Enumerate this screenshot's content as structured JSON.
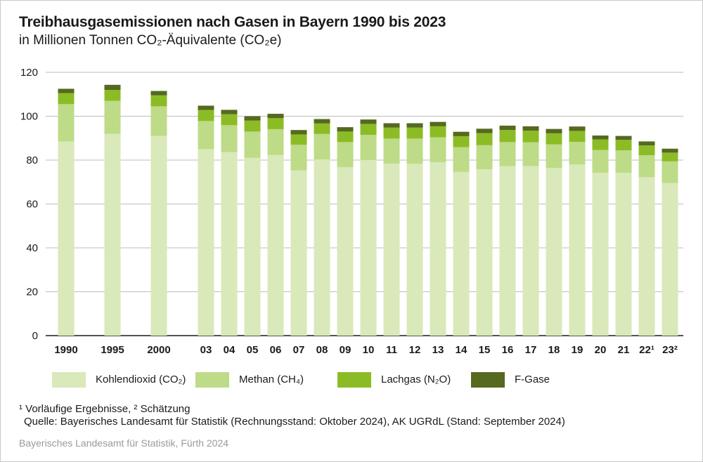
{
  "title": "Treibhausgasemissionen nach Gasen in Bayern 1990 bis 2023",
  "subtitle": "in Millionen Tonnen CO₂-Äquivalente (CO₂e)",
  "footnote": "¹ Vorläufige Ergebnisse, ² Schätzung",
  "source": "Quelle: Bayerisches Landesamt für Statistik (Rechnungsstand: Oktober 2024), AK UGRdL (Stand: September 2024)",
  "credit": "Bayerisches Landesamt für Statistik, Fürth 2024",
  "legend": [
    {
      "label": "Kohlendioxid (CO₂)",
      "color": "#d9e9b9"
    },
    {
      "label": "Methan (CH₄)",
      "color": "#bedb87"
    },
    {
      "label": "Lachgas (N₂O)",
      "color": "#8cbc25"
    },
    {
      "label": "F-Gase",
      "color": "#55691f"
    }
  ],
  "chart_data": {
    "type": "bar",
    "stacked": true,
    "categories": [
      "1990",
      "1995",
      "2000",
      "03",
      "04",
      "05",
      "06",
      "07",
      "08",
      "09",
      "10",
      "11",
      "12",
      "13",
      "14",
      "15",
      "16",
      "17",
      "18",
      "19",
      "20",
      "21",
      "22¹",
      "23²"
    ],
    "ylim": [
      0,
      120
    ],
    "yticks": [
      0,
      20,
      40,
      60,
      80,
      100,
      120
    ],
    "grid": true,
    "series": [
      {
        "name": "Kohlendioxid (CO₂)",
        "color": "#d9e9b9",
        "values": [
          88.5,
          92.0,
          91.0,
          85.0,
          83.6,
          81.0,
          82.3,
          75.3,
          80.3,
          76.8,
          80.0,
          78.4,
          78.3,
          79.0,
          74.6,
          75.8,
          77.2,
          77.3,
          76.4,
          78.0,
          74.2,
          74.2,
          72.2,
          69.6
        ]
      },
      {
        "name": "Methan (CH₄)",
        "color": "#bedb87",
        "values": [
          17.0,
          15.0,
          13.5,
          12.8,
          12.3,
          12.0,
          11.8,
          11.7,
          11.6,
          11.4,
          11.5,
          11.4,
          11.5,
          11.4,
          11.3,
          11.0,
          11.0,
          10.8,
          10.8,
          10.3,
          10.4,
          10.2,
          10.0,
          9.8
        ]
      },
      {
        "name": "Lachgas (N₂O)",
        "color": "#8cbc25",
        "values": [
          5.0,
          5.0,
          5.0,
          5.0,
          5.0,
          5.0,
          5.0,
          4.7,
          4.8,
          4.8,
          5.0,
          5.0,
          5.0,
          5.0,
          5.0,
          5.5,
          5.5,
          5.3,
          5.0,
          5.0,
          4.8,
          4.8,
          4.5,
          4.0
        ]
      },
      {
        "name": "F-Gase",
        "color": "#55691f",
        "values": [
          2.0,
          2.3,
          2.0,
          2.0,
          2.0,
          2.0,
          2.0,
          2.0,
          2.0,
          2.0,
          2.0,
          2.0,
          2.0,
          2.0,
          2.0,
          2.0,
          2.0,
          2.0,
          2.0,
          2.0,
          1.8,
          1.8,
          1.8,
          1.8
        ]
      }
    ]
  }
}
